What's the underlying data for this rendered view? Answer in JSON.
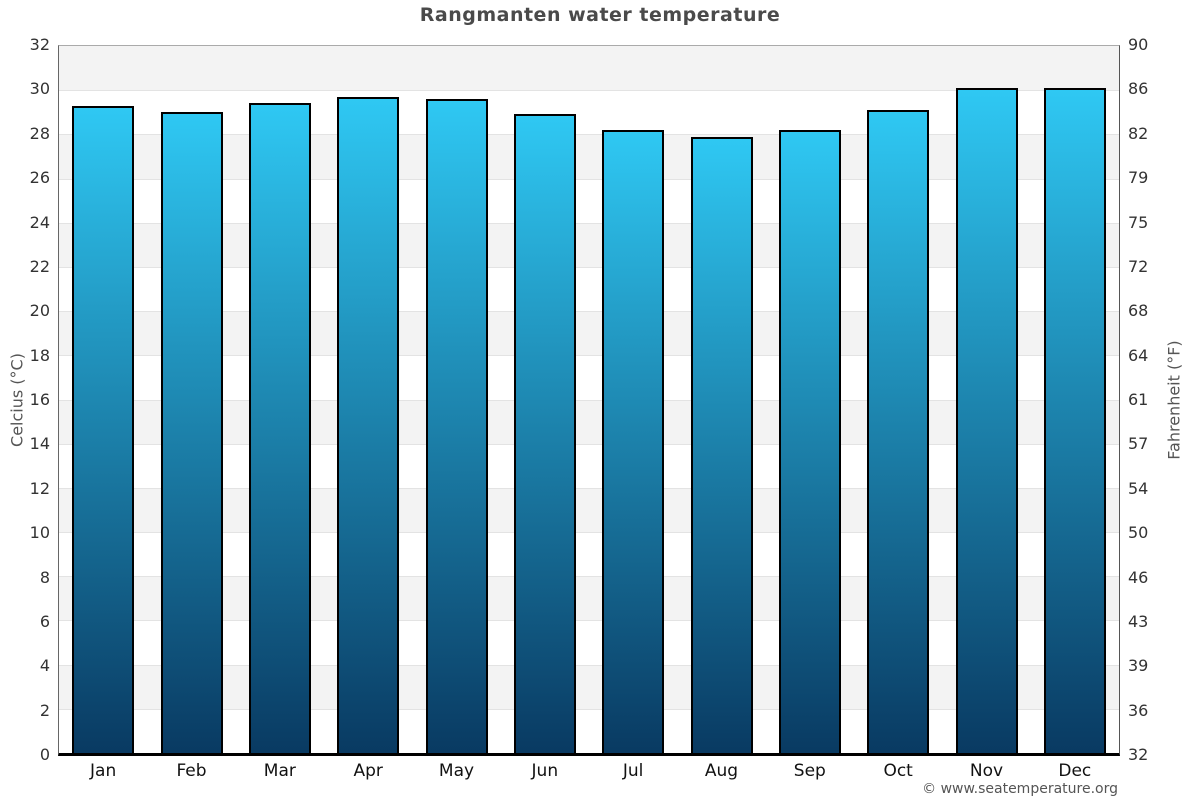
{
  "header": {
    "title": "Rangmanten water temperature"
  },
  "footer": {
    "credit": "© www.seatemperature.org"
  },
  "chart_data": {
    "type": "bar",
    "title": "Rangmanten water temperature",
    "categories": [
      "Jan",
      "Feb",
      "Mar",
      "Apr",
      "May",
      "Jun",
      "Jul",
      "Aug",
      "Sep",
      "Oct",
      "Nov",
      "Dec"
    ],
    "values": [
      29.3,
      29.0,
      29.4,
      29.7,
      29.6,
      28.9,
      28.2,
      27.9,
      28.2,
      29.1,
      30.1,
      30.1
    ],
    "unit": "°C",
    "xlabel": "",
    "ylabel_left": "Celcius (°C)",
    "ylabel_right": "Fahrenheit (°F)",
    "ylim_celsius": [
      0,
      32
    ],
    "ylim_fahrenheit": [
      32,
      90
    ],
    "yticks_celsius": [
      32,
      30,
      28,
      26,
      24,
      22,
      20,
      18,
      16,
      14,
      12,
      10,
      8,
      6,
      4,
      2,
      0
    ],
    "yticks_fahrenheit": [
      90,
      86,
      82,
      79,
      75,
      72,
      68,
      64,
      61,
      57,
      54,
      50,
      46,
      43,
      39,
      36,
      32
    ],
    "grid": "horizontal-bands-every-2C",
    "legend": null,
    "colors": {
      "bar_gradient_top": "#2fc8f3",
      "bar_gradient_bottom": "#093a62",
      "bar_border": "#000000",
      "band_gray": "#f3f3f3",
      "band_white": "#ffffff",
      "gridline": "#e3e3e3",
      "axis_bottom": "#000000",
      "title_text": "#4a4a4a",
      "tick_text": "#333333",
      "axis_title_text": "#555555",
      "footer_text": "#555555"
    }
  }
}
